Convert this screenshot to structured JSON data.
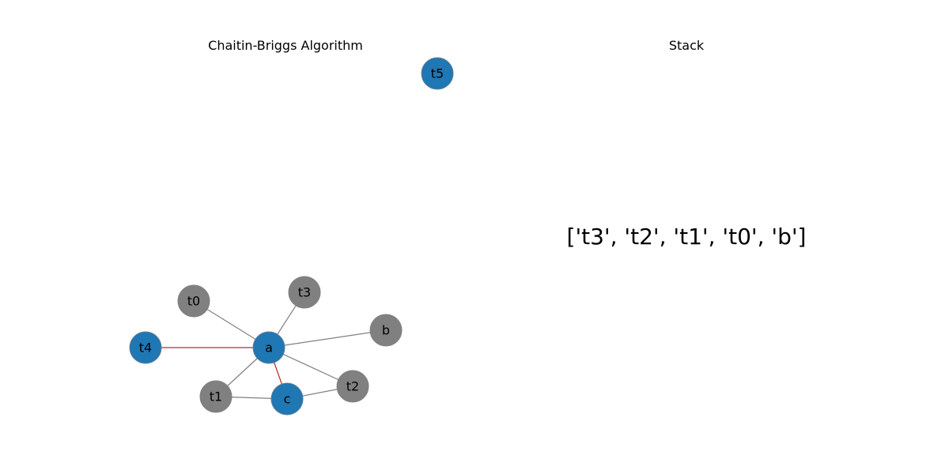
{
  "graph_panel": {
    "title": "Chaitin-Briggs Algorithm"
  },
  "stack_panel": {
    "title": "Stack",
    "contents": "['t3', 't2', 't1', 't0', 'b']"
  },
  "colors": {
    "colored_node": "#1f77b4",
    "stacked_node": "#808080",
    "edge": "#808080",
    "highlight_edge": "#c0282d"
  },
  "graph": {
    "nodes": [
      {
        "id": "t5",
        "label": "t5",
        "state": "colored"
      },
      {
        "id": "t3",
        "label": "t3",
        "state": "stacked"
      },
      {
        "id": "t0",
        "label": "t0",
        "state": "stacked"
      },
      {
        "id": "b",
        "label": "b",
        "state": "stacked"
      },
      {
        "id": "t4",
        "label": "t4",
        "state": "colored"
      },
      {
        "id": "a",
        "label": "a",
        "state": "colored"
      },
      {
        "id": "t2",
        "label": "t2",
        "state": "stacked"
      },
      {
        "id": "t1",
        "label": "t1",
        "state": "stacked"
      },
      {
        "id": "c",
        "label": "c",
        "state": "colored"
      }
    ],
    "edges": [
      {
        "source": "a",
        "target": "t0",
        "highlight": false
      },
      {
        "source": "a",
        "target": "t3",
        "highlight": false
      },
      {
        "source": "a",
        "target": "b",
        "highlight": false
      },
      {
        "source": "a",
        "target": "t2",
        "highlight": false
      },
      {
        "source": "a",
        "target": "t1",
        "highlight": false
      },
      {
        "source": "a",
        "target": "t4",
        "highlight": true
      },
      {
        "source": "a",
        "target": "c",
        "highlight": true
      },
      {
        "source": "t1",
        "target": "c",
        "highlight": false
      },
      {
        "source": "c",
        "target": "t2",
        "highlight": false
      }
    ]
  }
}
